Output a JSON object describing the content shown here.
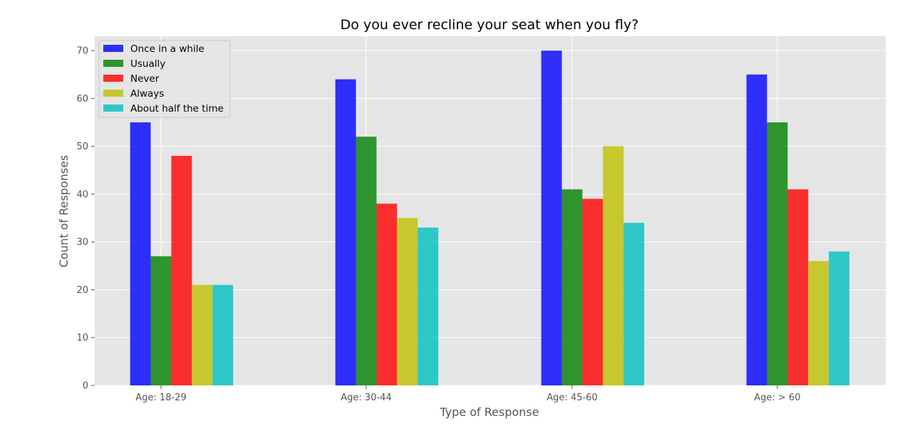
{
  "chart_data": {
    "type": "bar",
    "title": "Do you ever recline your seat when you fly?",
    "xlabel": "Type of Response",
    "ylabel": "Count of Responses",
    "categories": [
      "Age: 18-29",
      "Age: 30-44",
      "Age: 45-60",
      "Age: > 60"
    ],
    "ylim": [
      0,
      73
    ],
    "yticks": [
      0,
      10,
      20,
      30,
      40,
      50,
      60,
      70
    ],
    "grid": true,
    "legend_position": "top-left",
    "series": [
      {
        "name": "Once in a while",
        "color": "#0000ff",
        "values": [
          55,
          64,
          70,
          65
        ]
      },
      {
        "name": "Usually",
        "color": "#008000",
        "values": [
          27,
          52,
          41,
          55
        ]
      },
      {
        "name": "Never",
        "color": "#ff0000",
        "values": [
          48,
          38,
          39,
          41
        ]
      },
      {
        "name": "Always",
        "color": "#bfbf00",
        "values": [
          21,
          35,
          50,
          26
        ]
      },
      {
        "name": "About half the time",
        "color": "#00bfbf",
        "values": [
          21,
          33,
          34,
          28
        ]
      }
    ]
  }
}
